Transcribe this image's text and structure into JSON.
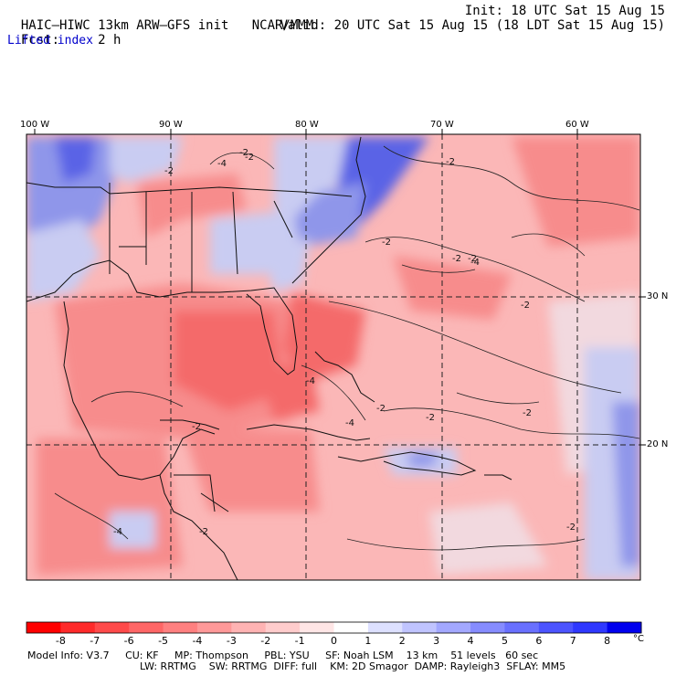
{
  "header": {
    "model": "HAIC–HIWC 13km ARW–GFS init",
    "org": "NCAR/MMM",
    "init": "Init: 18 UTC Sat 15 Aug 15",
    "fcst_label": "Fcst:",
    "fcst_value": "2 h",
    "valid": "Valid: 20 UTC Sat 15 Aug 15 (18 LDT Sat 15 Aug 15)",
    "field": "Lifted index"
  },
  "axes": {
    "lon_labels": [
      "100 W",
      "90 W",
      "80 W",
      "70 W",
      "60 W"
    ],
    "lat_labels": [
      "30 N",
      "20 N"
    ]
  },
  "contour_labels": [
    "-2",
    "-4",
    "-2",
    "-2",
    "-2",
    "-4",
    "-2",
    "-2",
    "-2",
    "-4",
    "-2",
    "-4",
    "-2",
    "-4",
    "-2",
    "-2",
    "-2",
    "-2",
    "-2"
  ],
  "colorbar": {
    "unit": "°C",
    "ticks": [
      "-8",
      "-7",
      "-6",
      "-5",
      "-4",
      "-3",
      "-2",
      "-1",
      "0",
      "1",
      "2",
      "3",
      "4",
      "5",
      "6",
      "7",
      "8"
    ],
    "colors": [
      "#ff0000",
      "#ff2a2a",
      "#ff4a4a",
      "#ff6666",
      "#ff8080",
      "#ff9999",
      "#ffb3b3",
      "#ffcccc",
      "#ffe6e6",
      "#ffffff",
      "#dde0ff",
      "#c0c4ff",
      "#a3a8ff",
      "#868cff",
      "#6970ff",
      "#4c54ff",
      "#2f38ff",
      "#0000ee"
    ]
  },
  "footer": {
    "line1": [
      "Model Info: V3.7",
      "CU: KF",
      "MP: Thompson",
      "PBL: YSU",
      "SF: Noah LSM",
      "13 km",
      "51 levels",
      "60 sec"
    ],
    "line2": [
      "LW: RRTMG",
      "SW: RRTMG",
      "DIFF: full",
      "KM: 2D Smagor",
      "DAMP: Rayleigh3",
      "SFLAY: MM5"
    ]
  },
  "map_colors": {
    "base": "#fbb7b7",
    "warm1": "#f78c8c",
    "warm2": "#f46a6a",
    "cool1": "#c9ccf2",
    "cool2": "#8f96ea",
    "cool3": "#5a63e6",
    "pale": "#f2d9df"
  }
}
